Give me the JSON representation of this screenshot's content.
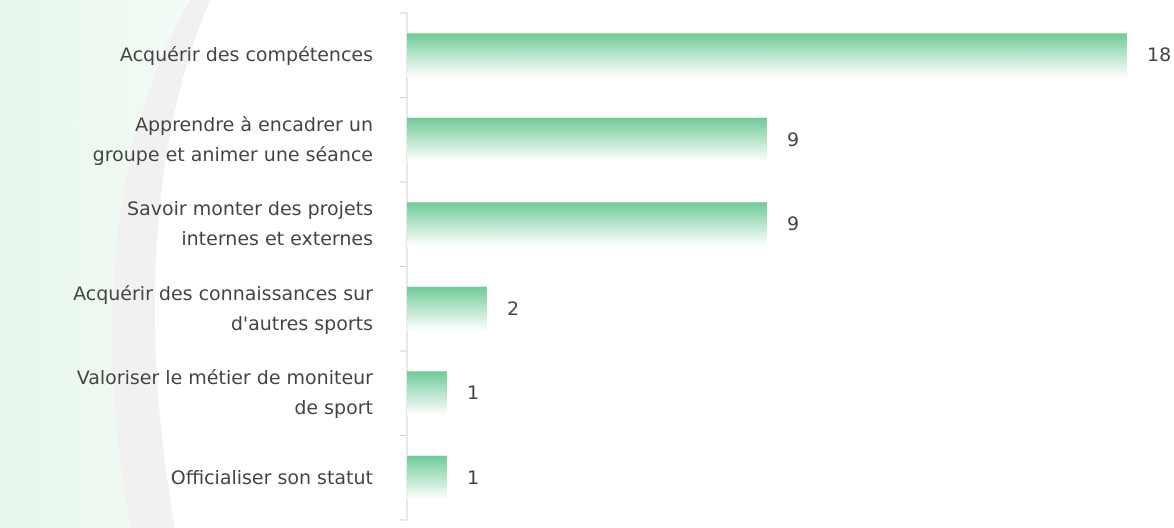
{
  "chart_data": {
    "type": "bar",
    "orientation": "horizontal",
    "categories": [
      "Acquérir des compétences",
      "Apprendre à encadrer un\ngroupe et animer une séance",
      "Savoir monter des projets\ninternes et externes",
      "Acquérir des connaissances sur\nd'autres sports",
      "Valoriser le métier de moniteur\nde sport",
      "Officialiser son statut"
    ],
    "values": [
      18,
      9,
      9,
      2,
      1,
      1
    ],
    "color": "#7ccf9f"
  }
}
